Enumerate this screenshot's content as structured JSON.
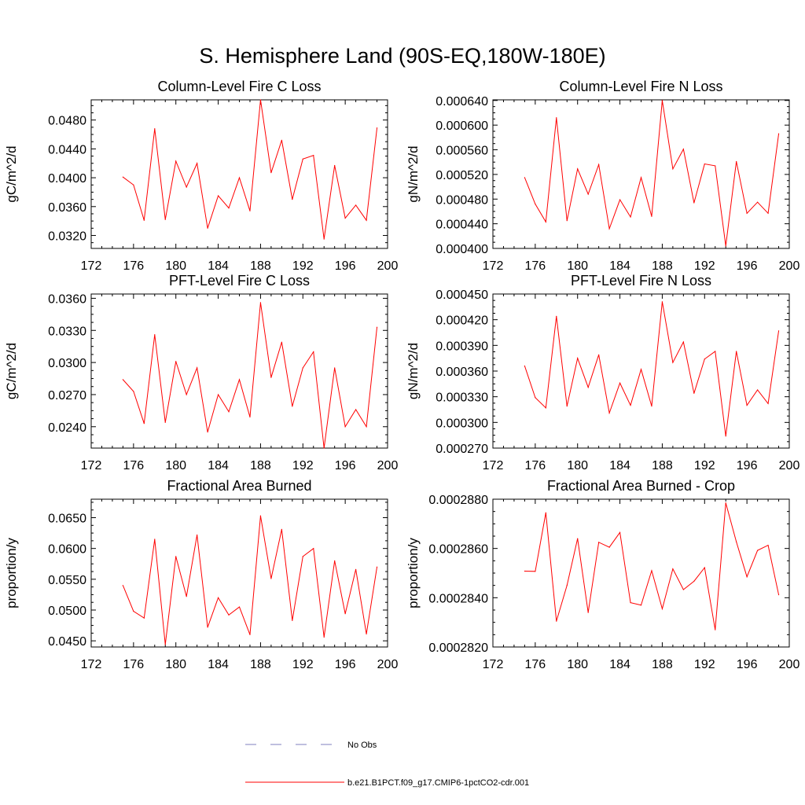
{
  "main_title": "S. Hemisphere Land (90S-EQ,180W-180E)",
  "colors": {
    "series": "#ff0000",
    "obs": "#7f7fbf",
    "axis": "#000000"
  },
  "legend": [
    {
      "label": "No Obs",
      "style": "dashed",
      "color": "#7f7fbf"
    },
    {
      "label": "b.e21.B1PCT.f09_g17.CMIP6-1pctCO2-cdr.001",
      "style": "solid",
      "color": "#ff0000"
    }
  ],
  "chart_data": [
    {
      "type": "line",
      "title": "Column-Level Fire C Loss",
      "ylabel": "gC/m^2/d",
      "xlim": [
        172,
        200
      ],
      "ylim": [
        0.0302,
        0.0508
      ],
      "xticks": [
        "172",
        "176",
        "180",
        "184",
        "188",
        "192",
        "196",
        "200"
      ],
      "yticks": [
        "0.0320",
        "0.0360",
        "0.0400",
        "0.0440",
        "0.0480"
      ],
      "grid": false,
      "series": [
        {
          "x": [
            175,
            176,
            177,
            178,
            179,
            180,
            181,
            182,
            183,
            184,
            185,
            186,
            187,
            188,
            189,
            190,
            191,
            192,
            193,
            194,
            195,
            196,
            197,
            198,
            199
          ],
          "y": [
            0.0401,
            0.039,
            0.0341,
            0.0468,
            0.0342,
            0.0423,
            0.0387,
            0.042,
            0.033,
            0.0375,
            0.0358,
            0.04,
            0.0354,
            0.0508,
            0.0407,
            0.0452,
            0.037,
            0.0426,
            0.0431,
            0.0315,
            0.0417,
            0.0344,
            0.0362,
            0.0341,
            0.0469
          ]
        }
      ]
    },
    {
      "type": "line",
      "title": "Column-Level Fire N Loss",
      "ylabel": "gN/m^2/d",
      "xlim": [
        172,
        200
      ],
      "ylim": [
        0.0004,
        0.000641
      ],
      "xticks": [
        "172",
        "176",
        "180",
        "184",
        "188",
        "192",
        "196",
        "200"
      ],
      "yticks": [
        "0.000400",
        "0.000440",
        "0.000480",
        "0.000520",
        "0.000560",
        "0.000600",
        "0.000640"
      ],
      "grid": false,
      "series": [
        {
          "x": [
            175,
            176,
            177,
            178,
            179,
            180,
            181,
            182,
            183,
            184,
            185,
            186,
            187,
            188,
            189,
            190,
            191,
            192,
            193,
            194,
            195,
            196,
            197,
            198,
            199
          ],
          "y": [
            0.000515,
            0.000472,
            0.000443,
            0.000612,
            0.000445,
            0.000529,
            0.000488,
            0.000536,
            0.000432,
            0.000479,
            0.000451,
            0.000515,
            0.000452,
            0.00064,
            0.000529,
            0.000561,
            0.000474,
            0.000537,
            0.000534,
            0.000404,
            0.000541,
            0.000457,
            0.000475,
            0.000457,
            0.000586
          ]
        }
      ]
    },
    {
      "type": "line",
      "title": "PFT-Level Fire C Loss",
      "ylabel": "gC/m^2/d",
      "xlim": [
        172,
        200
      ],
      "ylim": [
        0.022,
        0.0364
      ],
      "xticks": [
        "172",
        "176",
        "180",
        "184",
        "188",
        "192",
        "196",
        "200"
      ],
      "yticks": [
        "0.0240",
        "0.0270",
        "0.0300",
        "0.0330",
        "0.0360"
      ],
      "grid": false,
      "series": [
        {
          "x": [
            175,
            176,
            177,
            178,
            179,
            180,
            181,
            182,
            183,
            184,
            185,
            186,
            187,
            188,
            189,
            190,
            191,
            192,
            193,
            194,
            195,
            196,
            197,
            198,
            199
          ],
          "y": [
            0.0284,
            0.0273,
            0.0243,
            0.0326,
            0.0244,
            0.0301,
            0.027,
            0.0295,
            0.0235,
            0.027,
            0.0254,
            0.0284,
            0.0249,
            0.0356,
            0.0286,
            0.0319,
            0.0259,
            0.0295,
            0.031,
            0.022,
            0.0295,
            0.024,
            0.0256,
            0.024,
            0.0333
          ]
        }
      ]
    },
    {
      "type": "line",
      "title": "PFT-Level Fire N Loss",
      "ylabel": "gN/m^2/d",
      "xlim": [
        172,
        200
      ],
      "ylim": [
        0.00027,
        0.00045
      ],
      "xticks": [
        "172",
        "176",
        "180",
        "184",
        "188",
        "192",
        "196",
        "200"
      ],
      "yticks": [
        "0.000270",
        "0.000300",
        "0.000330",
        "0.000360",
        "0.000390",
        "0.000420",
        "0.000450"
      ],
      "grid": false,
      "series": [
        {
          "x": [
            175,
            176,
            177,
            178,
            179,
            180,
            181,
            182,
            183,
            184,
            185,
            186,
            187,
            188,
            189,
            190,
            191,
            192,
            193,
            194,
            195,
            196,
            197,
            198,
            199
          ],
          "y": [
            0.000366,
            0.000329,
            0.000317,
            0.000424,
            0.000319,
            0.000375,
            0.000341,
            0.000379,
            0.000311,
            0.000346,
            0.00032,
            0.000362,
            0.000319,
            0.000441,
            0.00037,
            0.000394,
            0.000334,
            0.000374,
            0.000383,
            0.000284,
            0.000383,
            0.00032,
            0.000338,
            0.000322,
            0.000407
          ]
        }
      ]
    },
    {
      "type": "line",
      "title": "Fractional Area Burned",
      "ylabel": "proportion/y",
      "xlim": [
        172,
        200
      ],
      "ylim": [
        0.044,
        0.068
      ],
      "xticks": [
        "172",
        "176",
        "180",
        "184",
        "188",
        "192",
        "196",
        "200"
      ],
      "yticks": [
        "0.0450",
        "0.0500",
        "0.0550",
        "0.0600",
        "0.0650"
      ],
      "grid": false,
      "series": [
        {
          "x": [
            175,
            176,
            177,
            178,
            179,
            180,
            181,
            182,
            183,
            184,
            185,
            186,
            187,
            188,
            189,
            190,
            191,
            192,
            193,
            194,
            195,
            196,
            197,
            198,
            199
          ],
          "y": [
            0.054,
            0.0498,
            0.0487,
            0.0615,
            0.0444,
            0.0587,
            0.0522,
            0.0622,
            0.0472,
            0.052,
            0.0492,
            0.0505,
            0.046,
            0.0653,
            0.0551,
            0.0631,
            0.0483,
            0.0587,
            0.06,
            0.0456,
            0.058,
            0.0494,
            0.0566,
            0.0461,
            0.057
          ]
        }
      ]
    },
    {
      "type": "line",
      "title": "Fractional Area Burned - Crop",
      "ylabel": "proportion/y",
      "xlim": [
        172,
        200
      ],
      "ylim": [
        0.000282,
        0.000288
      ],
      "xticks": [
        "172",
        "176",
        "180",
        "184",
        "188",
        "192",
        "196",
        "200"
      ],
      "yticks": [
        "0.0002820",
        "0.0002840",
        "0.0002860",
        "0.0002880"
      ],
      "grid": false,
      "series": [
        {
          "x": [
            175,
            176,
            177,
            178,
            179,
            180,
            181,
            182,
            183,
            184,
            185,
            186,
            187,
            188,
            189,
            190,
            191,
            192,
            193,
            194,
            195,
            196,
            197,
            198,
            199
          ],
          "y": [
            0.00028508,
            0.00028507,
            0.00028745,
            0.00028305,
            0.0002845,
            0.0002864,
            0.0002834,
            0.00028625,
            0.00028605,
            0.00028665,
            0.0002838,
            0.0002837,
            0.0002851,
            0.00028355,
            0.00028517,
            0.00028433,
            0.00028467,
            0.00028522,
            0.0002827,
            0.00028785,
            0.00028627,
            0.00028485,
            0.00028592,
            0.00028613,
            0.00028412
          ]
        }
      ]
    }
  ]
}
